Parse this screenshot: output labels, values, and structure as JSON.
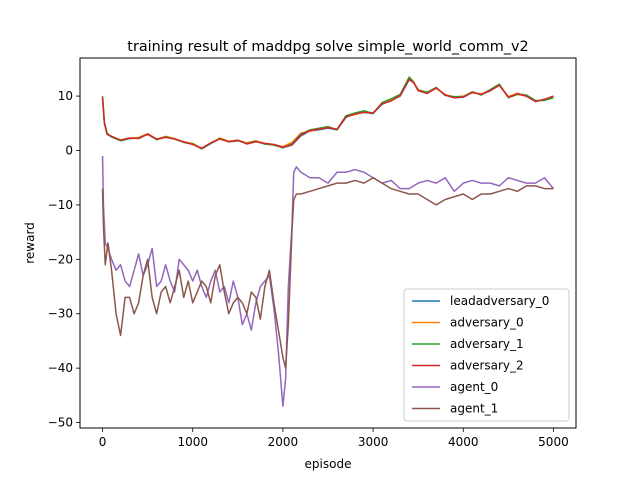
{
  "chart_data": {
    "type": "line",
    "title": "training result of maddpg solve simple_world_comm_v2",
    "xlabel": "episode",
    "ylabel": "reward",
    "xlim": [
      -250,
      5250
    ],
    "ylim": [
      -51,
      17
    ],
    "xticks": [
      0,
      1000,
      2000,
      3000,
      4000,
      5000
    ],
    "yticks": [
      -50,
      -40,
      -30,
      -20,
      -10,
      0,
      10
    ],
    "grid": false,
    "legend_position": "lower right",
    "series": [
      {
        "name": "leadadversary_0",
        "color": "#1f77b4",
        "x": [
          0,
          20,
          50,
          100,
          200,
          300,
          400,
          500,
          600,
          700,
          800,
          900,
          1000,
          1100,
          1200,
          1300,
          1400,
          1500,
          1600,
          1700,
          1800,
          1900,
          2000,
          2100,
          2200,
          2300,
          2400,
          2500,
          2600,
          2700,
          2800,
          2900,
          3000,
          3100,
          3200,
          3300,
          3400,
          3450,
          3500,
          3600,
          3700,
          3800,
          3900,
          4000,
          4100,
          4200,
          4300,
          4400,
          4500,
          4600,
          4700,
          4800,
          4900,
          5000
        ],
        "y": [
          9.5,
          5,
          3,
          2.5,
          1.8,
          2.2,
          2.3,
          3.0,
          2.0,
          2.5,
          2.1,
          1.5,
          1.2,
          0.3,
          1.3,
          2.2,
          1.6,
          1.8,
          1.3,
          1.7,
          1.2,
          1.0,
          0.5,
          1.0,
          2.7,
          3.6,
          3.8,
          4.1,
          3.8,
          6.1,
          6.8,
          7.0,
          6.8,
          8.5,
          9.2,
          10.0,
          13.0,
          12.5,
          11.0,
          10.5,
          11.5,
          10.2,
          9.7,
          9.8,
          10.7,
          10.3,
          11.0,
          12.0,
          9.8,
          10.4,
          10.0,
          9.0,
          9.4,
          9.8
        ]
      },
      {
        "name": "adversary_0",
        "color": "#ff7f0e",
        "x": [
          0,
          20,
          50,
          100,
          200,
          300,
          400,
          500,
          600,
          700,
          800,
          900,
          1000,
          1100,
          1200,
          1300,
          1400,
          1500,
          1600,
          1700,
          1800,
          1900,
          2000,
          2100,
          2200,
          2300,
          2400,
          2500,
          2600,
          2700,
          2800,
          2900,
          3000,
          3100,
          3200,
          3300,
          3400,
          3450,
          3500,
          3600,
          3700,
          3800,
          3900,
          4000,
          4100,
          4200,
          4300,
          4400,
          4500,
          4600,
          4700,
          4800,
          4900,
          5000
        ],
        "y": [
          9.7,
          5.2,
          3.1,
          2.6,
          1.9,
          2.3,
          2.4,
          3.1,
          2.1,
          2.6,
          2.2,
          1.6,
          1.3,
          0.4,
          1.4,
          2.3,
          1.7,
          1.9,
          1.4,
          1.8,
          1.3,
          1.1,
          0.7,
          1.5,
          3.2,
          3.5,
          4.0,
          4.3,
          3.9,
          6.3,
          6.6,
          7.1,
          6.9,
          8.7,
          9.3,
          10.2,
          13.2,
          12.4,
          11.2,
          10.6,
          11.4,
          10.3,
          9.8,
          10.0,
          10.6,
          10.4,
          11.1,
          12.1,
          9.9,
          10.5,
          10.1,
          9.1,
          9.3,
          9.9
        ]
      },
      {
        "name": "adversary_1",
        "color": "#2ca02c",
        "x": [
          0,
          20,
          50,
          100,
          200,
          300,
          400,
          500,
          600,
          700,
          800,
          900,
          1000,
          1100,
          1200,
          1300,
          1400,
          1500,
          1600,
          1700,
          1800,
          1900,
          2000,
          2100,
          2200,
          2300,
          2400,
          2500,
          2600,
          2700,
          2800,
          2900,
          3000,
          3100,
          3200,
          3300,
          3400,
          3450,
          3500,
          3600,
          3700,
          3800,
          3900,
          4000,
          4100,
          4200,
          4300,
          4400,
          4500,
          4600,
          4700,
          4800,
          4900,
          5000
        ],
        "y": [
          10.0,
          5.3,
          3.2,
          2.5,
          1.8,
          2.2,
          2.3,
          3.0,
          2.0,
          2.5,
          2.1,
          1.5,
          1.2,
          0.3,
          1.3,
          2.2,
          1.6,
          1.8,
          1.3,
          1.7,
          1.2,
          1.0,
          0.5,
          1.2,
          3.0,
          3.8,
          4.1,
          4.4,
          3.8,
          6.4,
          6.9,
          7.3,
          6.8,
          8.8,
          9.5,
          10.3,
          13.5,
          12.6,
          11.1,
          10.7,
          11.6,
          10.1,
          9.9,
          9.9,
          10.8,
          10.2,
          11.2,
          12.2,
          9.7,
          10.3,
          10.2,
          9.2,
          9.2,
          9.7
        ]
      },
      {
        "name": "adversary_2",
        "color": "#d62728",
        "x": [
          0,
          20,
          50,
          100,
          200,
          300,
          400,
          500,
          600,
          700,
          800,
          900,
          1000,
          1100,
          1200,
          1300,
          1400,
          1500,
          1600,
          1700,
          1800,
          1900,
          2000,
          2100,
          2200,
          2300,
          2400,
          2500,
          2600,
          2700,
          2800,
          2900,
          3000,
          3100,
          3200,
          3300,
          3400,
          3450,
          3500,
          3600,
          3700,
          3800,
          3900,
          4000,
          4100,
          4200,
          4300,
          4400,
          4500,
          4600,
          4700,
          4800,
          4900,
          5000
        ],
        "y": [
          9.8,
          5.1,
          3.0,
          2.6,
          1.9,
          2.3,
          2.2,
          3.0,
          2.1,
          2.4,
          2.1,
          1.6,
          1.1,
          0.4,
          1.4,
          2.1,
          1.6,
          1.9,
          1.2,
          1.6,
          1.3,
          1.1,
          0.6,
          1.1,
          2.9,
          3.7,
          3.9,
          4.2,
          3.9,
          6.2,
          6.7,
          7.0,
          6.9,
          8.6,
          9.1,
          10.1,
          13.1,
          12.5,
          11.0,
          10.5,
          11.5,
          10.2,
          9.7,
          9.8,
          10.7,
          10.3,
          11.0,
          12.0,
          9.8,
          10.4,
          10.0,
          9.0,
          9.4,
          10.0
        ]
      },
      {
        "name": "agent_0",
        "color": "#9467bd",
        "x": [
          0,
          10,
          30,
          60,
          100,
          150,
          200,
          250,
          300,
          350,
          400,
          450,
          500,
          550,
          600,
          650,
          700,
          750,
          800,
          850,
          900,
          950,
          1000,
          1050,
          1100,
          1150,
          1200,
          1250,
          1300,
          1350,
          1400,
          1450,
          1500,
          1550,
          1600,
          1650,
          1700,
          1750,
          1800,
          1850,
          1900,
          1950,
          2000,
          2030,
          2060,
          2100,
          2120,
          2150,
          2200,
          2300,
          2400,
          2500,
          2600,
          2700,
          2800,
          2900,
          3000,
          3100,
          3200,
          3300,
          3400,
          3500,
          3600,
          3700,
          3800,
          3900,
          4000,
          4100,
          4200,
          4300,
          4400,
          4500,
          4600,
          4700,
          4800,
          4900,
          5000
        ],
        "y": [
          -1,
          -10,
          -17,
          -18,
          -20,
          -22,
          -21,
          -24,
          -25,
          -22,
          -19,
          -23,
          -21,
          -18,
          -25,
          -24,
          -21,
          -24,
          -26,
          -20,
          -21,
          -22,
          -24,
          -22,
          -25,
          -27,
          -24,
          -22,
          -26,
          -25,
          -28,
          -24,
          -27,
          -32,
          -30,
          -33,
          -28,
          -25,
          -24,
          -23,
          -29,
          -37,
          -47,
          -42,
          -25,
          -14,
          -4,
          -3,
          -4,
          -5,
          -5,
          -6,
          -4,
          -4,
          -3.5,
          -4,
          -5,
          -6,
          -5.5,
          -7,
          -7,
          -6,
          -5.5,
          -6,
          -5,
          -7.5,
          -6,
          -5.5,
          -6,
          -6,
          -6.5,
          -5,
          -5.5,
          -6,
          -6,
          -5,
          -7
        ]
      },
      {
        "name": "agent_1",
        "color": "#8c564b",
        "x": [
          0,
          10,
          30,
          60,
          100,
          150,
          200,
          250,
          300,
          350,
          400,
          450,
          500,
          550,
          600,
          650,
          700,
          750,
          800,
          850,
          900,
          950,
          1000,
          1050,
          1100,
          1150,
          1200,
          1250,
          1300,
          1350,
          1400,
          1450,
          1500,
          1550,
          1600,
          1650,
          1700,
          1750,
          1800,
          1850,
          1900,
          1950,
          2000,
          2030,
          2060,
          2100,
          2120,
          2150,
          2200,
          2300,
          2400,
          2500,
          2600,
          2700,
          2800,
          2900,
          3000,
          3100,
          3200,
          3300,
          3400,
          3500,
          3600,
          3700,
          3800,
          3900,
          4000,
          4100,
          4200,
          4300,
          4400,
          4500,
          4600,
          4700,
          4800,
          4900,
          5000
        ],
        "y": [
          -7,
          -14,
          -21,
          -17,
          -22,
          -30,
          -34,
          -27,
          -27,
          -30,
          -28,
          -23,
          -20,
          -27,
          -30,
          -26,
          -25,
          -28,
          -25,
          -22,
          -27,
          -24,
          -28,
          -26,
          -24,
          -25,
          -28,
          -23,
          -21,
          -26,
          -30,
          -28,
          -27,
          -28,
          -30,
          -26,
          -27,
          -31,
          -25,
          -22,
          -28,
          -33,
          -38,
          -40,
          -32,
          -15,
          -9,
          -8,
          -8,
          -7.5,
          -7,
          -6.5,
          -6,
          -6,
          -5.5,
          -6,
          -5,
          -6,
          -7,
          -7.5,
          -8,
          -8,
          -9,
          -10,
          -9,
          -8.5,
          -8,
          -9,
          -8,
          -8,
          -7.5,
          -7,
          -7.5,
          -6.5,
          -6.5,
          -7,
          -7
        ]
      }
    ]
  }
}
